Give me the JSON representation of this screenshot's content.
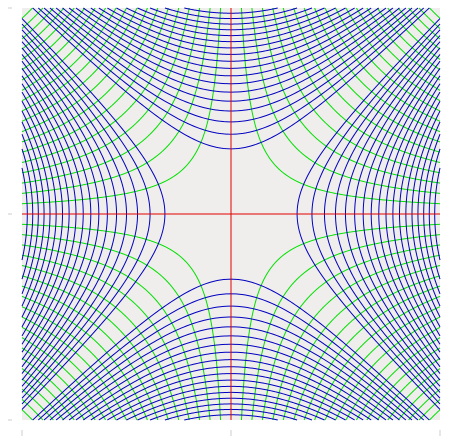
{
  "chart_data": {
    "type": "contour",
    "xlim": [
      -1,
      1
    ],
    "ylim": [
      -1,
      1
    ],
    "xticks": [
      -1,
      0,
      1
    ],
    "yticks": [
      -1,
      0,
      1
    ],
    "background": "#f0eeec",
    "series": [
      {
        "color": "#00e000",
        "function": "xy",
        "levels": [
          -0.95,
          -0.9,
          -0.85,
          -0.8,
          -0.75,
          -0.7,
          -0.65,
          -0.6,
          -0.55,
          -0.5,
          -0.45,
          -0.4,
          -0.35,
          -0.3,
          -0.25,
          -0.2,
          -0.15,
          -0.1,
          -0.05,
          0.05,
          0.1,
          0.15,
          0.2,
          0.25,
          0.3,
          0.35,
          0.4,
          0.45,
          0.5,
          0.55,
          0.6,
          0.65,
          0.7,
          0.75,
          0.8,
          0.85,
          0.9,
          0.95
        ]
      },
      {
        "color": "#0000c0",
        "function": "x2-y2",
        "levels": [
          -0.95,
          -0.9,
          -0.85,
          -0.8,
          -0.75,
          -0.7,
          -0.65,
          -0.6,
          -0.55,
          -0.5,
          -0.45,
          -0.4,
          -0.35,
          -0.3,
          -0.25,
          -0.2,
          -0.15,
          -0.1,
          0.1,
          0.15,
          0.2,
          0.25,
          0.3,
          0.35,
          0.4,
          0.45,
          0.5,
          0.55,
          0.6,
          0.65,
          0.7,
          0.75,
          0.8,
          0.85,
          0.9,
          0.95
        ]
      },
      {
        "color": "#e00000",
        "function": "xy",
        "levels": [
          0
        ]
      }
    ]
  }
}
